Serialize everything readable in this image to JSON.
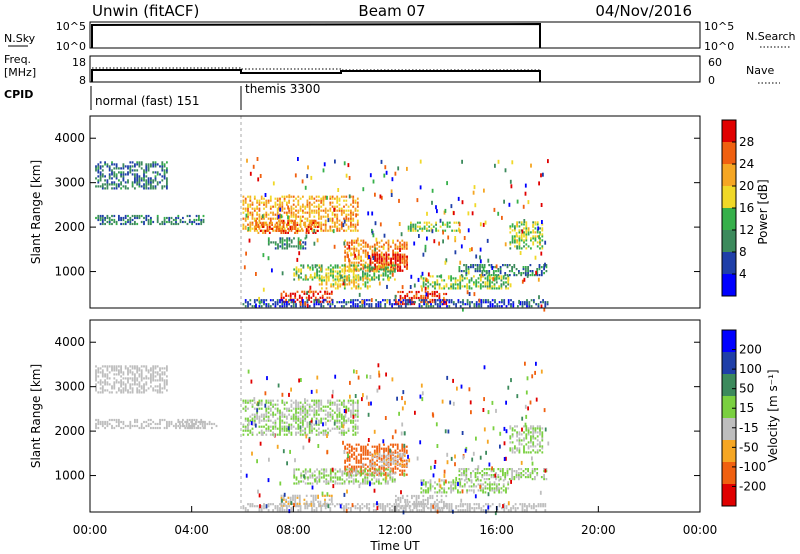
{
  "header": {
    "station": "Unwin (fitACF)",
    "beam": "Beam 07",
    "date": "04/Nov/2016"
  },
  "strip_panels": {
    "nsky_label": "N.Sky",
    "nsky_ticks": [
      "10^5",
      "10^0"
    ],
    "nsky_right_ticks": [
      "10^5",
      "10^0"
    ],
    "nsearch_label": "N.Search",
    "freq_label_1": "Freq.",
    "freq_label_2": "[MHz]",
    "freq_ticks": [
      "18",
      "8"
    ],
    "nave_ticks": [
      "60",
      "0"
    ],
    "nave_label": "Nave",
    "cpid_label": "CPID",
    "modes": [
      {
        "label": "normal (fast) 151"
      },
      {
        "label": "themis 3300"
      }
    ]
  },
  "x_axis": {
    "label": "Time UT",
    "ticks": [
      "00:00",
      "04:00",
      "08:00",
      "12:00",
      "16:00",
      "20:00",
      "00:00"
    ]
  },
  "colorbars": {
    "power": {
      "label": "Power [dB]",
      "ticks": [
        "28",
        "24",
        "20",
        "16",
        "12",
        "8",
        "4"
      ]
    },
    "velocity": {
      "label": "Velocity [m s⁻¹]",
      "ticks": [
        "200",
        "100",
        "50",
        "15",
        "-15",
        "-50",
        "-100",
        "-200"
      ]
    }
  },
  "chart_data": [
    {
      "type": "heatmap",
      "title": "",
      "xlabel": "",
      "ylabel": "Slant Range [km]",
      "xlim": [
        0,
        24
      ],
      "ylim": [
        180,
        4500
      ],
      "yticks": [
        "1000",
        "2000",
        "3000",
        "4000"
      ],
      "colorbar": {
        "label": "Power [dB]",
        "range": [
          0,
          30
        ],
        "colors": [
          "#0000ff",
          "#1f3fa8",
          "#3c8a5c",
          "#36b04a",
          "#f0d828",
          "#f5a623",
          "#f06010",
          "#e00000"
        ]
      },
      "blobs": [
        {
          "t0": 0.2,
          "t1": 3.0,
          "r0": 2850,
          "r1": 3450,
          "v": 8
        },
        {
          "t0": 0.2,
          "t1": 4.5,
          "r0": 2050,
          "r1": 2250,
          "v": 9
        },
        {
          "t0": 6.0,
          "t1": 10.5,
          "r0": 1900,
          "r1": 2700,
          "v": 20
        },
        {
          "t0": 6.5,
          "t1": 9.0,
          "r0": 1850,
          "r1": 2150,
          "v": 24
        },
        {
          "t0": 7.0,
          "t1": 8.5,
          "r0": 1500,
          "r1": 1750,
          "v": 10
        },
        {
          "t0": 10.0,
          "t1": 12.5,
          "r0": 1000,
          "r1": 1700,
          "v": 22
        },
        {
          "t0": 11.0,
          "t1": 12.5,
          "r0": 1000,
          "r1": 1400,
          "v": 28
        },
        {
          "t0": 8.0,
          "t1": 12.0,
          "r0": 800,
          "r1": 1150,
          "v": 14
        },
        {
          "t0": 7.5,
          "t1": 9.5,
          "r0": 300,
          "r1": 550,
          "v": 27
        },
        {
          "t0": 12.0,
          "t1": 14.0,
          "r0": 250,
          "r1": 550,
          "v": 26
        },
        {
          "t0": 9.0,
          "t1": 11.0,
          "r0": 600,
          "r1": 900,
          "v": 18
        },
        {
          "t0": 13.0,
          "t1": 16.5,
          "r0": 600,
          "r1": 900,
          "v": 14
        },
        {
          "t0": 14.5,
          "t1": 18.0,
          "r0": 900,
          "r1": 1150,
          "v": 9
        },
        {
          "t0": 16.5,
          "t1": 17.8,
          "r0": 1500,
          "r1": 2100,
          "v": 15
        },
        {
          "t0": 12.5,
          "t1": 14.5,
          "r0": 1900,
          "r1": 2100,
          "v": 14
        },
        {
          "t0": 6.0,
          "t1": 18.0,
          "r0": 200,
          "r1": 350,
          "v": 6
        }
      ]
    },
    {
      "type": "heatmap",
      "title": "",
      "xlabel": "Time UT",
      "ylabel": "Slant Range [km]",
      "xlim": [
        0,
        24
      ],
      "ylim": [
        180,
        4500
      ],
      "yticks": [
        "1000",
        "2000",
        "3000",
        "4000"
      ],
      "colorbar": {
        "label": "Velocity [m s⁻¹]",
        "range": [
          -250,
          250
        ],
        "colors": [
          "#e00000",
          "#f06010",
          "#f5a623",
          "#bebebe",
          "#7ad040",
          "#3c8a5c",
          "#1f3fa8",
          "#0000ff"
        ]
      },
      "blobs": [
        {
          "t0": 0.2,
          "t1": 3.0,
          "r0": 2850,
          "r1": 3450,
          "v": -5
        },
        {
          "t0": 0.2,
          "t1": 4.5,
          "r0": 2050,
          "r1": 2250,
          "v": -5
        },
        {
          "t0": 3.5,
          "t1": 5.0,
          "r0": 2050,
          "r1": 2200,
          "v": -40
        },
        {
          "t0": 6.0,
          "t1": 10.5,
          "r0": 1900,
          "r1": 2700,
          "v": 0
        },
        {
          "t0": 10.0,
          "t1": 12.5,
          "r0": 1000,
          "r1": 1700,
          "v": -180
        },
        {
          "t0": 11.0,
          "t1": 12.5,
          "r0": 1200,
          "r1": 1500,
          "v": -60
        },
        {
          "t0": 8.0,
          "t1": 12.0,
          "r0": 800,
          "r1": 1150,
          "v": 0
        },
        {
          "t0": 7.5,
          "t1": 9.5,
          "r0": 300,
          "r1": 550,
          "v": -60
        },
        {
          "t0": 12.0,
          "t1": 14.0,
          "r0": 250,
          "r1": 550,
          "v": -30
        },
        {
          "t0": 13.0,
          "t1": 16.5,
          "r0": 600,
          "r1": 900,
          "v": 0
        },
        {
          "t0": 14.5,
          "t1": 18.0,
          "r0": 900,
          "r1": 1150,
          "v": 0
        },
        {
          "t0": 16.5,
          "t1": 17.8,
          "r0": 1500,
          "r1": 2100,
          "v": 0
        },
        {
          "t0": 6.0,
          "t1": 18.0,
          "r0": 200,
          "r1": 350,
          "v": -20
        }
      ]
    }
  ]
}
